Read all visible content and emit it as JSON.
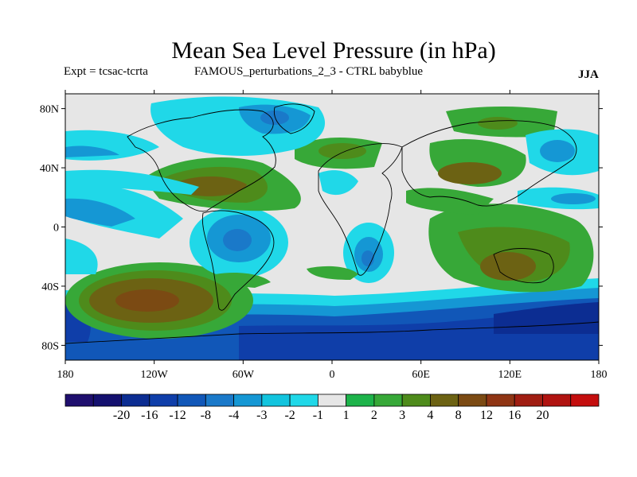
{
  "title": "Mean Sea Level Pressure (in hPa)",
  "subtitle_left": "Expt = tcsac-tcrta",
  "subtitle_center": "FAMOUS_perturbations_2_3 - CTRL babyblue",
  "season": "JJA",
  "y_axis": {
    "ticks": [
      {
        "value": 80,
        "label": "80N"
      },
      {
        "value": 40,
        "label": "40N"
      },
      {
        "value": 0,
        "label": "0"
      },
      {
        "value": -40,
        "label": "40S"
      },
      {
        "value": -80,
        "label": "80S"
      }
    ]
  },
  "x_axis": {
    "ticks": [
      {
        "value": -180,
        "label": "180"
      },
      {
        "value": -120,
        "label": "120W"
      },
      {
        "value": -60,
        "label": "60W"
      },
      {
        "value": 0,
        "label": "0"
      },
      {
        "value": 60,
        "label": "60E"
      },
      {
        "value": 120,
        "label": "120E"
      },
      {
        "value": 180,
        "label": "180"
      }
    ]
  },
  "colorbar": {
    "colors": [
      "#1f0f6e",
      "#14106f",
      "#0c2d92",
      "#0f3ea9",
      "#1157b8",
      "#1a79c9",
      "#1597d4",
      "#12c4de",
      "#20d8e8",
      "#e6e6e6",
      "#1db34a",
      "#37a838",
      "#4e8b1b",
      "#6c6213",
      "#7b4a13",
      "#8f3514",
      "#a01e12",
      "#b01310",
      "#c40e0e"
    ],
    "labels": [
      "-20",
      "-16",
      "-12",
      "-8",
      "-4",
      "-3",
      "-2",
      "-1",
      "1",
      "2",
      "3",
      "4",
      "8",
      "12",
      "16",
      "20"
    ]
  },
  "map_colors": {
    "ocean_neutral": "#e6e6e6",
    "land_outline": "#000000"
  }
}
